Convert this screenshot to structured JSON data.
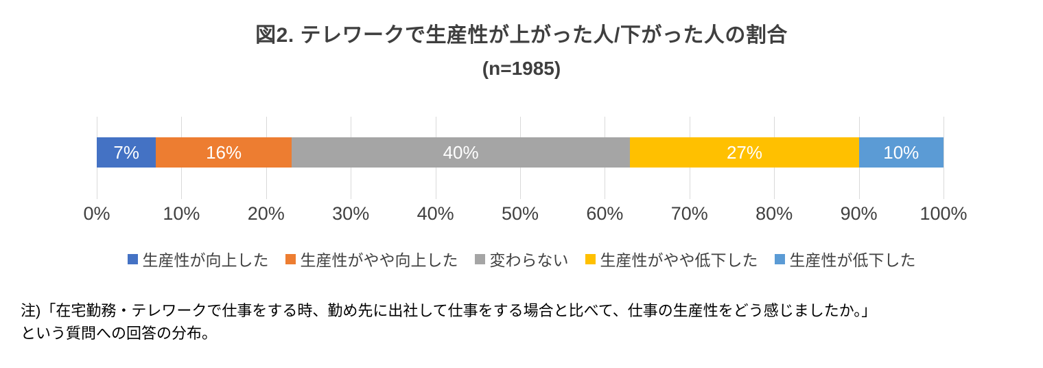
{
  "chart_data": {
    "type": "bar",
    "subtype": "horizontal-stacked",
    "title": "図2. テレワークで生産性が上がった人/下がった人の割合",
    "subtitle": "(n=1985)",
    "series": [
      {
        "name": "生産性が向上した",
        "value": 7,
        "label": "7%",
        "color": "#4472C4"
      },
      {
        "name": "生産性がやや向上した",
        "value": 16,
        "label": "16%",
        "color": "#ED7D31"
      },
      {
        "name": "変わらない",
        "value": 40,
        "label": "40%",
        "color": "#A5A5A5"
      },
      {
        "name": "生産性がやや低下した",
        "value": 27,
        "label": "27%",
        "color": "#FFC000"
      },
      {
        "name": "生産性が低下した",
        "value": 10,
        "label": "10%",
        "color": "#5B9BD5"
      }
    ],
    "xlim": [
      0,
      100
    ],
    "x_ticks": [
      "0%",
      "10%",
      "20%",
      "30%",
      "40%",
      "50%",
      "60%",
      "70%",
      "80%",
      "90%",
      "100%"
    ],
    "grid": true,
    "gridline_color": "#d9d9d9",
    "legend_position": "bottom",
    "data_label_color": "#ffffff"
  },
  "note": {
    "line1": "注)「在宅勤務・テレワークで仕事をする時、勤め先に出社して仕事をする場合と比べて、仕事の生産性をどう感じましたか。」",
    "line2": "という質問への回答の分布。"
  }
}
